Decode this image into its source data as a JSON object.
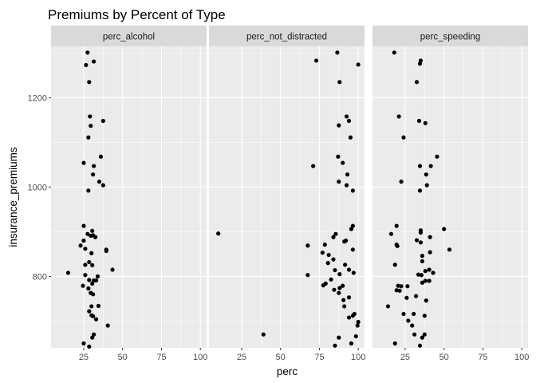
{
  "chart_data": {
    "type": "scatter",
    "title": "Premiums by Percent of Type",
    "xlabel": "perc",
    "ylabel": "insurance_premiums",
    "xlim": [
      4,
      104
    ],
    "ylim": [
      640,
      1315
    ],
    "x_ticks": [
      25,
      50,
      75,
      100
    ],
    "x_tick_labels": [
      "25",
      "50",
      "75",
      "100"
    ],
    "y_ticks": [
      800,
      1000,
      1200
    ],
    "y_tick_labels": [
      "800",
      "1000",
      "1200"
    ],
    "grid": true,
    "legend": "none",
    "panels": [
      {
        "name": "perc_alcohol",
        "points": [
          [
            27.5,
            1301
          ],
          [
            26.5,
            1273
          ],
          [
            31.5,
            1281
          ],
          [
            28.5,
            1235
          ],
          [
            29,
            1158
          ],
          [
            29.5,
            1137
          ],
          [
            37.5,
            1148
          ],
          [
            28,
            1111
          ],
          [
            36,
            1068
          ],
          [
            25,
            1054
          ],
          [
            31.5,
            1047
          ],
          [
            31,
            1028
          ],
          [
            35,
            1012
          ],
          [
            37.5,
            1004
          ],
          [
            28,
            992
          ],
          [
            25,
            913
          ],
          [
            30.5,
            902
          ],
          [
            27.5,
            895
          ],
          [
            31,
            892
          ],
          [
            29.5,
            891
          ],
          [
            32.5,
            888
          ],
          [
            25,
            880
          ],
          [
            23,
            869
          ],
          [
            26,
            862
          ],
          [
            39.5,
            860
          ],
          [
            39.5,
            857
          ],
          [
            30,
            852
          ],
          [
            28.5,
            832
          ],
          [
            26,
            826
          ],
          [
            30.5,
            825
          ],
          [
            43.5,
            815
          ],
          [
            15,
            808
          ],
          [
            26,
            803
          ],
          [
            34,
            800
          ],
          [
            28.5,
            792
          ],
          [
            33,
            791
          ],
          [
            31.5,
            791
          ],
          [
            30.5,
            784
          ],
          [
            24.5,
            779
          ],
          [
            28,
            773
          ],
          [
            29.5,
            763
          ],
          [
            31,
            760
          ],
          [
            34.5,
            734
          ],
          [
            30,
            733
          ],
          [
            28.5,
            722
          ],
          [
            30,
            713
          ],
          [
            31,
            711
          ],
          [
            33,
            704
          ],
          [
            40.5,
            690
          ],
          [
            31.5,
            670
          ],
          [
            30.5,
            663
          ],
          [
            25,
            650
          ],
          [
            28.5,
            643
          ]
        ]
      },
      {
        "name": "perc_not_distracted",
        "points": [
          [
            86.5,
            1301
          ],
          [
            73,
            1283
          ],
          [
            100,
            1274
          ],
          [
            88,
            1235
          ],
          [
            92.5,
            1158
          ],
          [
            94,
            1148
          ],
          [
            87.5,
            1138
          ],
          [
            95,
            1111
          ],
          [
            87,
            1068
          ],
          [
            90,
            1054
          ],
          [
            71,
            1047
          ],
          [
            93,
            1028
          ],
          [
            87.5,
            1012
          ],
          [
            92.5,
            1004
          ],
          [
            96.5,
            992
          ],
          [
            96.5,
            913
          ],
          [
            95.5,
            906
          ],
          [
            10,
            896
          ],
          [
            85.5,
            895
          ],
          [
            84,
            888
          ],
          [
            92,
            880
          ],
          [
            91,
            878
          ],
          [
            67.5,
            869
          ],
          [
            78.5,
            871
          ],
          [
            96.5,
            860
          ],
          [
            77,
            853
          ],
          [
            81,
            848
          ],
          [
            84,
            838
          ],
          [
            80.5,
            830
          ],
          [
            91.5,
            826
          ],
          [
            94,
            815
          ],
          [
            97,
            808
          ],
          [
            85,
            814
          ],
          [
            67.5,
            803
          ],
          [
            88,
            805
          ],
          [
            82.5,
            793
          ],
          [
            79,
            784
          ],
          [
            77.5,
            780
          ],
          [
            90,
            779
          ],
          [
            88,
            774
          ],
          [
            84.5,
            770
          ],
          [
            87.5,
            763
          ],
          [
            94,
            753
          ],
          [
            90.5,
            747
          ],
          [
            91,
            733
          ],
          [
            97.5,
            716
          ],
          [
            96.5,
            712
          ],
          [
            94,
            708
          ],
          [
            100,
            698
          ],
          [
            99.5,
            690
          ],
          [
            39,
            670
          ],
          [
            87.5,
            663
          ],
          [
            98.5,
            666
          ],
          [
            85,
            645
          ],
          [
            95.5,
            650
          ]
        ]
      },
      {
        "name": "perc_speeding",
        "points": [
          [
            18,
            1301
          ],
          [
            35,
            1283
          ],
          [
            34.5,
            1276
          ],
          [
            32.5,
            1235
          ],
          [
            21,
            1158
          ],
          [
            34,
            1148
          ],
          [
            38,
            1143
          ],
          [
            24,
            1111
          ],
          [
            45.5,
            1068
          ],
          [
            34.5,
            1047
          ],
          [
            41.5,
            1047
          ],
          [
            38.5,
            1028
          ],
          [
            22.5,
            1012
          ],
          [
            39,
            1004
          ],
          [
            34.5,
            992
          ],
          [
            19.5,
            913
          ],
          [
            50,
            906
          ],
          [
            35,
            903
          ],
          [
            35,
            898
          ],
          [
            16,
            895
          ],
          [
            41,
            888
          ],
          [
            32.5,
            881
          ],
          [
            35,
            876
          ],
          [
            19.5,
            871
          ],
          [
            20,
            868
          ],
          [
            53.5,
            860
          ],
          [
            41,
            854
          ],
          [
            36,
            846
          ],
          [
            36,
            834
          ],
          [
            18.5,
            826
          ],
          [
            40.5,
            815
          ],
          [
            38,
            812
          ],
          [
            33.5,
            804
          ],
          [
            35.5,
            803
          ],
          [
            43,
            808
          ],
          [
            38,
            790
          ],
          [
            40.5,
            790
          ],
          [
            36,
            786
          ],
          [
            20.5,
            779
          ],
          [
            22.5,
            778
          ],
          [
            26.5,
            778
          ],
          [
            19.5,
            769
          ],
          [
            21.5,
            768
          ],
          [
            32,
            756
          ],
          [
            26,
            752
          ],
          [
            38.5,
            746
          ],
          [
            14,
            733
          ],
          [
            24,
            716
          ],
          [
            30.5,
            716
          ],
          [
            37.5,
            712
          ],
          [
            27,
            701
          ],
          [
            29.5,
            690
          ],
          [
            31,
            670
          ],
          [
            37.5,
            670
          ],
          [
            36,
            663
          ],
          [
            18.5,
            650
          ],
          [
            34.5,
            645
          ]
        ]
      }
    ]
  }
}
